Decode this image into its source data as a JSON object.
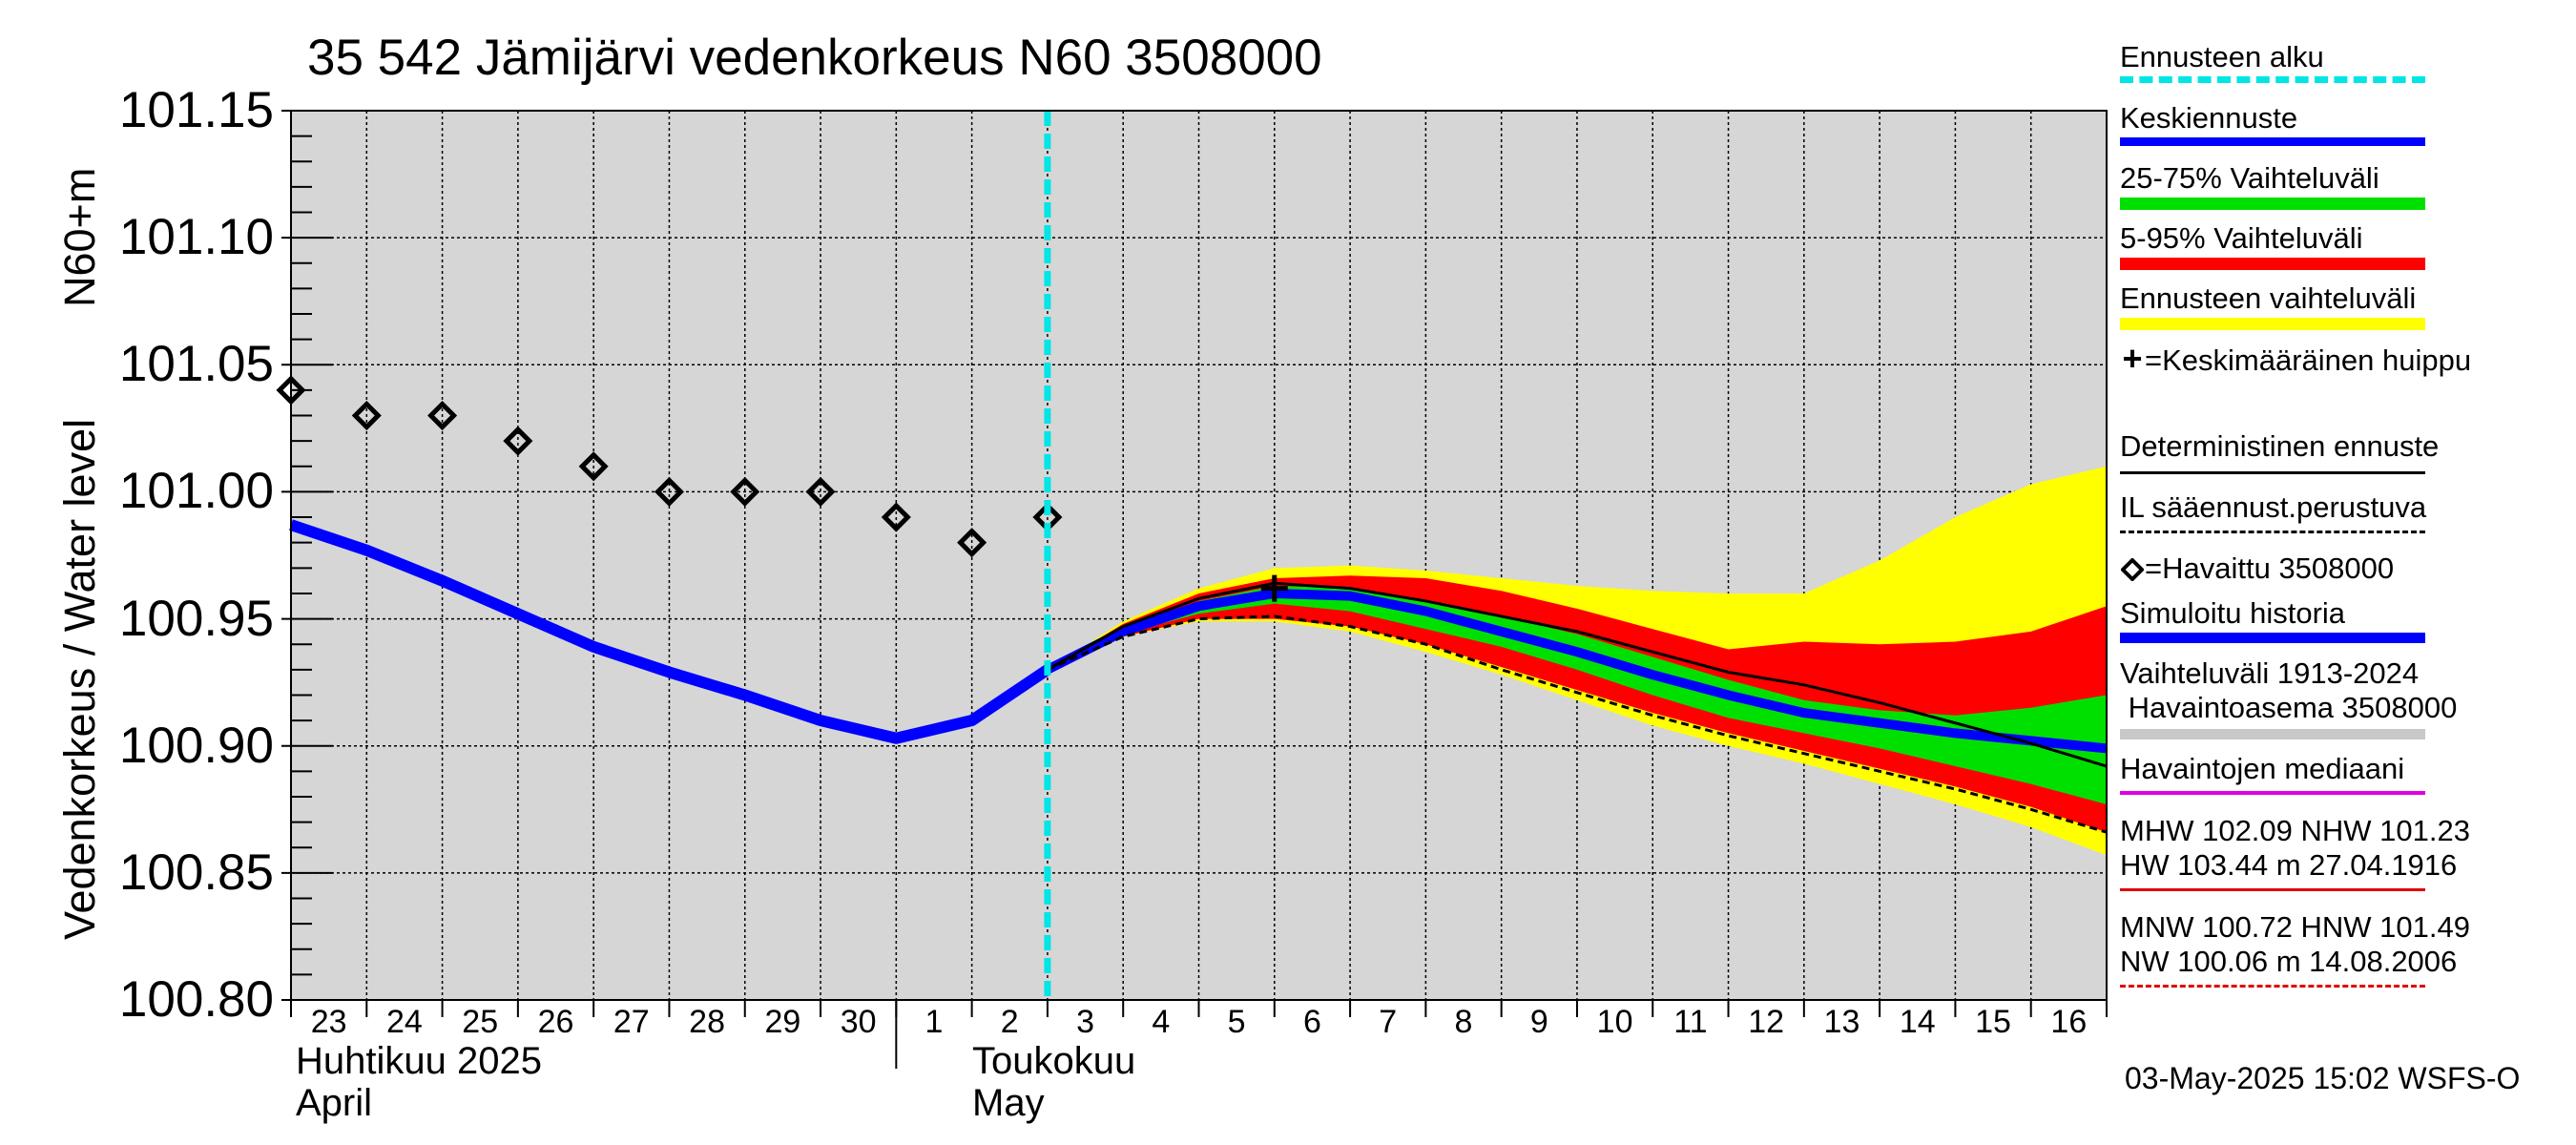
{
  "title": "35 542 Jämijärvi vedenkorkeus N60 3508000",
  "y_axis_labels": {
    "primary": "Vedenkorkeus / Water level",
    "secondary": "N60+m"
  },
  "months": {
    "april_fi": "Huhtikuu  2025",
    "april_en": "April",
    "may_fi": "Toukokuu",
    "may_en": "May"
  },
  "footer": "03-May-2025 15:02 WSFS-O",
  "legend": {
    "forecast_start": "Ennusteen alku",
    "mean_forecast": "Keskiennuste",
    "range_25_75": "25-75% Vaihteluväli",
    "range_5_95": "5-95% Vaihteluväli",
    "forecast_range": "Ennusteen vaihteluväli",
    "mean_peak": "=Keskimääräinen huippu",
    "deterministic": "Deterministinen ennuste",
    "il_forecast": "IL sääennust.perustuva",
    "observed": "=Havaittu 3508000",
    "simulated": "Simuloitu historia",
    "hist_range_1": "Vaihteluväli 1913-2024",
    "hist_range_2": " Havaintoasema 3508000",
    "obs_median": "Havaintojen mediaani",
    "high_1": "MHW 102.09 NHW 101.23",
    "high_2": "HW 103.44 m 27.04.1916",
    "low_1": "MNW 100.72 HNW 101.49",
    "low_2": "NW 100.06 m 14.08.2006"
  },
  "colors": {
    "forecast_start": "#00e5e5",
    "mean_forecast": "#0000ff",
    "range_25_75": "#00e000",
    "range_5_95": "#ff0000",
    "forecast_range": "#ffff00",
    "simulated": "#0000ff",
    "hist_range": "#c8c8c8",
    "obs_median": "#e000e0",
    "high_line": "#e00000",
    "low_line": "#e00000",
    "plot_bg": "#d6d6d6"
  },
  "chart_data": {
    "type": "line",
    "title": "35 542 Jämijärvi vedenkorkeus N60 3508000",
    "xlabel": "",
    "ylabel": "Vedenkorkeus / Water level",
    "ylim": [
      100.8,
      101.15
    ],
    "yticks": [
      "101.15",
      "101.10",
      "101.05",
      "101.00",
      "100.95",
      "100.90",
      "100.85",
      "100.80"
    ],
    "x_tick_labels": [
      "23",
      "24",
      "25",
      "26",
      "27",
      "28",
      "29",
      "30",
      "1",
      "2",
      "3",
      "4",
      "5",
      "6",
      "7",
      "8",
      "9",
      "10",
      "11",
      "12",
      "13",
      "14",
      "15",
      "16"
    ],
    "x_range_days": [
      0,
      24
    ],
    "grid": true,
    "forecast_start_day": 10,
    "observed": {
      "name": "=Havaittu 3508000",
      "x": [
        0,
        1,
        2,
        3,
        4,
        5,
        6,
        7,
        8,
        9,
        10
      ],
      "y": [
        101.04,
        101.03,
        101.03,
        101.02,
        101.01,
        101.0,
        101.0,
        101.0,
        100.99,
        100.98,
        100.99
      ]
    },
    "simulated": {
      "name": "Simuloitu historia",
      "x": [
        0,
        1,
        2,
        3,
        4,
        5,
        6,
        7,
        8,
        9,
        10
      ],
      "y": [
        100.987,
        100.977,
        100.965,
        100.952,
        100.939,
        100.929,
        100.92,
        100.91,
        100.903,
        100.91,
        100.93
      ]
    },
    "mean_forecast": {
      "name": "Keskiennuste",
      "x": [
        10,
        11,
        12,
        13,
        14,
        15,
        16,
        17,
        18,
        19,
        20,
        21,
        22,
        23,
        24
      ],
      "y": [
        100.93,
        100.945,
        100.955,
        100.96,
        100.959,
        100.953,
        100.945,
        100.937,
        100.928,
        100.92,
        100.913,
        100.909,
        100.905,
        100.902,
        100.899
      ]
    },
    "deterministic": {
      "name": "Deterministinen ennuste",
      "x": [
        10,
        11,
        12,
        13,
        14,
        15,
        16,
        17,
        18,
        19,
        20,
        21,
        22,
        23,
        24
      ],
      "y": [
        100.93,
        100.947,
        100.958,
        100.964,
        100.962,
        100.957,
        100.951,
        100.945,
        100.937,
        100.929,
        100.924,
        100.917,
        100.909,
        100.901,
        100.892
      ]
    },
    "il_forecast": {
      "name": "IL sääennust.perustuva",
      "x": [
        10,
        11,
        12,
        13,
        14,
        15,
        16,
        17,
        18,
        19,
        20,
        21,
        22,
        23,
        24
      ],
      "y": [
        100.93,
        100.943,
        100.95,
        100.951,
        100.947,
        100.94,
        100.93,
        100.921,
        100.912,
        100.904,
        100.897,
        100.89,
        100.883,
        100.875,
        100.866
      ]
    },
    "mean_peak": {
      "x": 13,
      "y": 100.962
    },
    "band_forecast_range": {
      "x": [
        10,
        11,
        12,
        13,
        14,
        15,
        16,
        17,
        18,
        19,
        20,
        21,
        22,
        23,
        24
      ],
      "upper": [
        100.93,
        100.949,
        100.962,
        100.97,
        100.971,
        100.969,
        100.966,
        100.963,
        100.961,
        100.96,
        100.96,
        100.973,
        100.99,
        101.003,
        101.01
      ],
      "lower": [
        100.93,
        100.943,
        100.949,
        100.949,
        100.945,
        100.937,
        100.928,
        100.918,
        100.908,
        100.9,
        100.893,
        100.885,
        100.877,
        100.868,
        100.857
      ]
    },
    "band_5_95": {
      "x": [
        10,
        11,
        12,
        13,
        14,
        15,
        16,
        17,
        18,
        19,
        20,
        21,
        22,
        23,
        24
      ],
      "upper": [
        100.93,
        100.948,
        100.96,
        100.966,
        100.967,
        100.966,
        100.961,
        100.954,
        100.946,
        100.938,
        100.941,
        100.94,
        100.941,
        100.945,
        100.955
      ],
      "lower": [
        100.93,
        100.943,
        100.95,
        100.95,
        100.947,
        100.94,
        100.931,
        100.922,
        100.913,
        100.905,
        100.898,
        100.891,
        100.884,
        100.876,
        100.866
      ]
    },
    "band_25_75": {
      "x": [
        10,
        11,
        12,
        13,
        14,
        15,
        16,
        17,
        18,
        19,
        20,
        21,
        22,
        23,
        24
      ],
      "upper": [
        100.93,
        100.946,
        100.957,
        100.963,
        100.962,
        100.957,
        100.951,
        100.944,
        100.935,
        100.926,
        100.918,
        100.914,
        100.912,
        100.915,
        100.92
      ],
      "lower": [
        100.93,
        100.944,
        100.952,
        100.956,
        100.953,
        100.946,
        100.939,
        100.93,
        100.92,
        100.911,
        100.905,
        100.899,
        100.892,
        100.885,
        100.877
      ]
    }
  }
}
